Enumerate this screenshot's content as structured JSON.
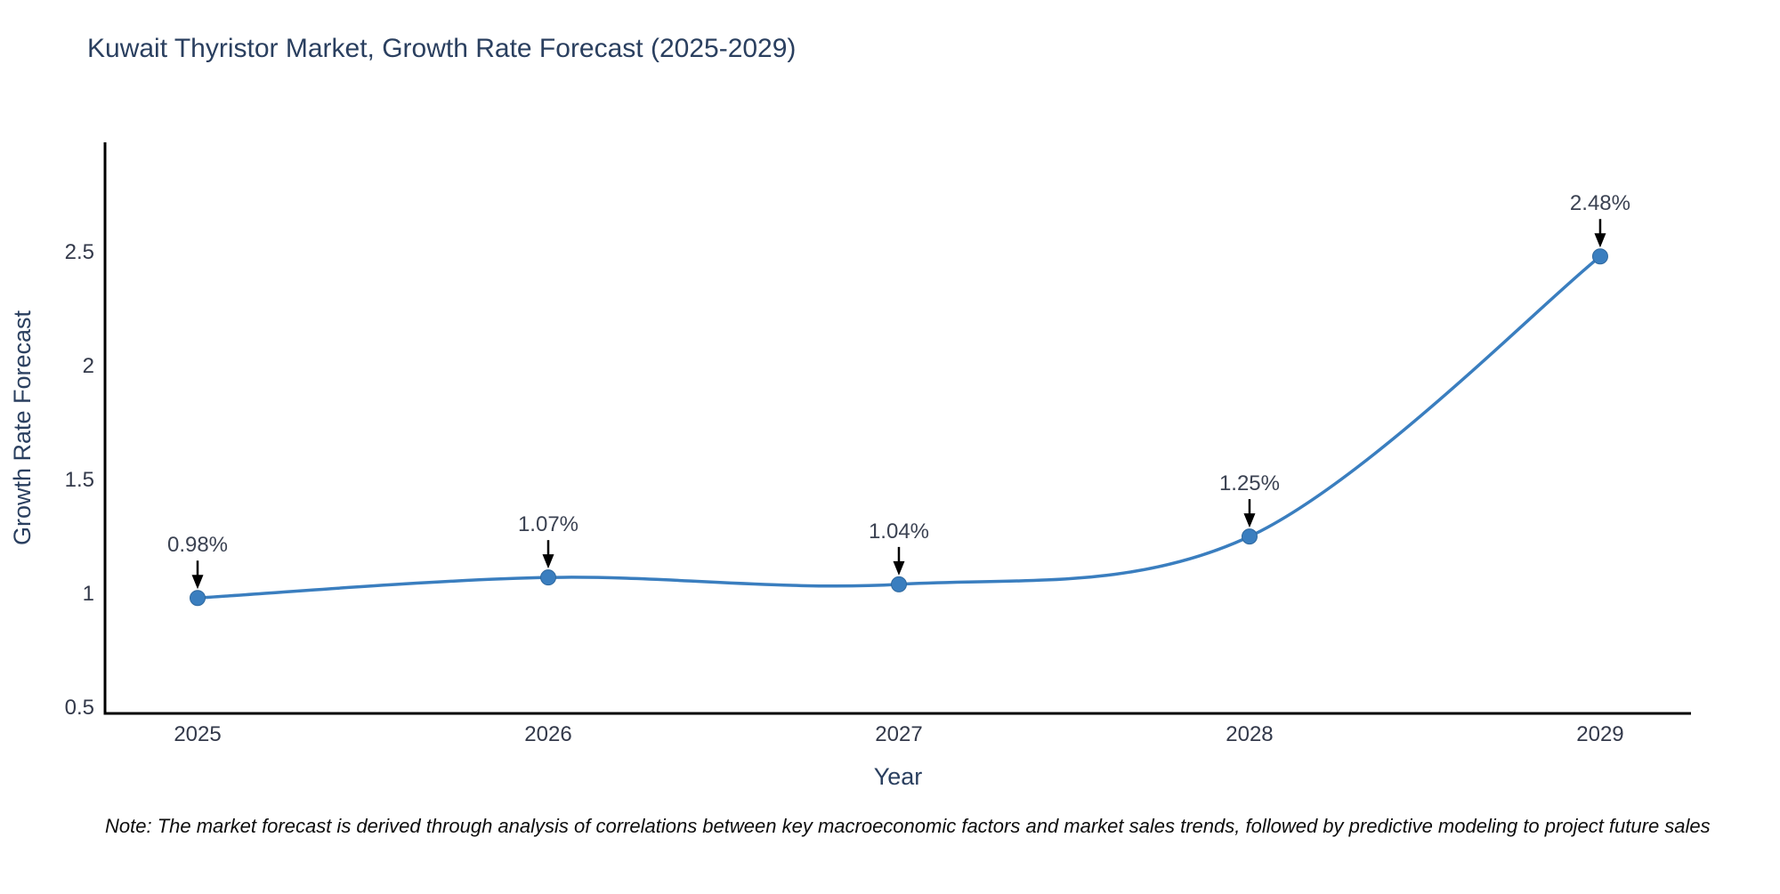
{
  "title": "Kuwait Thyristor Market, Growth Rate Forecast (2025-2029)",
  "note": "Note: The market forecast is derived through analysis of correlations between key macroeconomic factors and market sales trends, followed by predictive modeling to project future sales",
  "chart_data": {
    "type": "line",
    "line_shape": "spline",
    "title": "Kuwait Thyristor Market, Growth Rate Forecast (2025-2029)",
    "xlabel": "Year",
    "ylabel": "Growth Rate Forecast",
    "x": [
      2025,
      2026,
      2027,
      2028,
      2029
    ],
    "values": [
      0.98,
      1.07,
      1.04,
      1.25,
      2.48
    ],
    "point_labels": [
      "0.98%",
      "1.07%",
      "1.04%",
      "1.25%",
      "2.48%"
    ],
    "xtick_labels": [
      "2025",
      "2026",
      "2027",
      "2028",
      "2029"
    ],
    "ytick_values": [
      0.5,
      1,
      1.5,
      2,
      2.5
    ],
    "ytick_labels": [
      "0.5",
      "1",
      "1.5",
      "2",
      "2.5"
    ],
    "xlim": [
      2024.736,
      2029.259
    ],
    "ylim": [
      0.473,
      2.981
    ],
    "grid": false,
    "legend": false,
    "colors": {
      "line": "#3a7ebf",
      "marker": "#3a7ebf",
      "marker_edge": "#2f689e",
      "axis": "#000000",
      "title_text": "#2a3f5f",
      "axis_title_text": "#2a3f5f",
      "tick_text": "#33394a",
      "annotation_text": "#3b4252",
      "arrow": "#000000",
      "background": "#ffffff"
    }
  }
}
